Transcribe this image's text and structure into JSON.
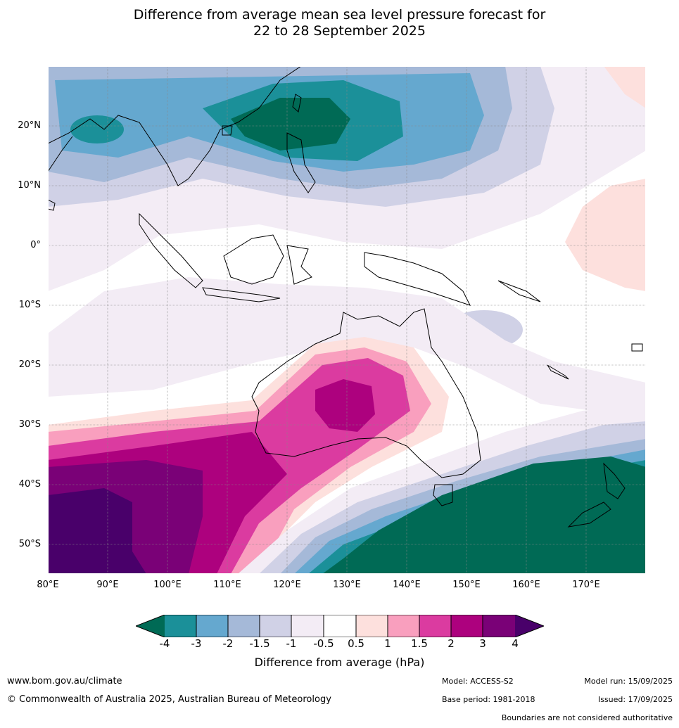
{
  "title": {
    "line1": "Difference from average mean sea level pressure forecast for",
    "line2": "22 to 28 September 2025"
  },
  "map": {
    "lat_labels": [
      "20°N",
      "10°N",
      "0°",
      "10°S",
      "20°S",
      "30°S",
      "40°S",
      "50°S"
    ],
    "lon_labels": [
      "80°E",
      "90°E",
      "100°E",
      "110°E",
      "120°E",
      "130°E",
      "140°E",
      "150°E",
      "160°E",
      "170°E"
    ],
    "extent": {
      "lon": [
        80,
        180
      ],
      "lat": [
        -55,
        30
      ]
    }
  },
  "colorbar": {
    "title": "Difference from average (hPa)",
    "ticks": [
      "-4",
      "-3",
      "-2",
      "-1.5",
      "-1",
      "-0.5",
      "0.5",
      "1",
      "1.5",
      "2",
      "3",
      "4"
    ],
    "colors": {
      "lt_-4": "#006a55",
      "-4_-3": "#1b9099",
      "-3_-2": "#65a8cf",
      "-2_-1.5": "#a5b9d8",
      "-1.5_-1": "#d0d1e6",
      "-1_-0.5": "#f3ecf5",
      "-0.5_0.5": "#ffffff",
      "0.5_1": "#fde0dd",
      "1_1.5": "#f99fbe",
      "1.5_2": "#db3ba0",
      "2_3": "#ad017e",
      "3_4": "#7a0177",
      "gt_4": "#49006a"
    }
  },
  "footer": {
    "website": "www.bom.gov.au/climate",
    "copyright": "© Commonwealth of Australia 2025, Australian Bureau of Meteorology",
    "model": "Model: ACCESS-S2",
    "base_period": "Base period: 1981-2018",
    "model_run": "Model run: 15/09/2025",
    "issued": "Issued: 17/09/2025",
    "disclaimer": "Boundaries are not considered authoritative"
  }
}
